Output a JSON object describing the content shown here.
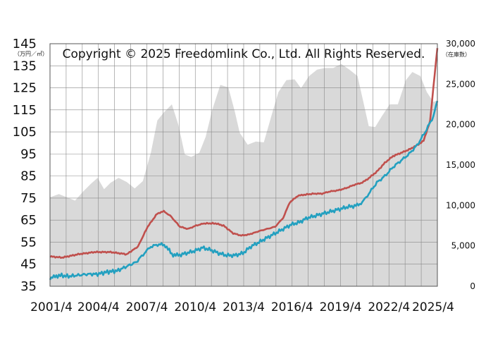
{
  "chart_data": {
    "type": "line",
    "title": "",
    "annotation": "Copyright © 2025 Freedomlink Co., Ltd. All Rights Reserved.",
    "left_unit": "（万円／㎡）",
    "right_unit": "（在庫数）",
    "grid": true,
    "y_left": {
      "ylim": [
        35,
        145
      ],
      "ticks": [
        "145",
        "135",
        "125",
        "115",
        "105",
        "95",
        "85",
        "75",
        "65",
        "55",
        "45",
        "35"
      ]
    },
    "y_right": {
      "ylim": [
        0,
        30000
      ],
      "ticks": [
        "30,000",
        "25,000",
        "20,000",
        "15,000",
        "10,000",
        "5,000",
        "0"
      ]
    },
    "x_ticks": [
      "2001/4",
      "2004/4",
      "2007/4",
      "2010/4",
      "2013/4",
      "2016/4",
      "2019/4",
      "2022/4",
      "2025/4"
    ],
    "xlim": [
      2001.25,
      2025.25
    ],
    "colors": {
      "area": "#d9d9d9",
      "red": "#c0504d",
      "teal": "#23a0c0",
      "grid": "#888888"
    },
    "series": [
      {
        "type": "area",
        "axis": "right",
        "points": [
          [
            2001.25,
            11000
          ],
          [
            2001.8,
            11400
          ],
          [
            2002.3,
            11000
          ],
          [
            2002.8,
            10600
          ],
          [
            2003.3,
            11700
          ],
          [
            2003.8,
            12700
          ],
          [
            2004.2,
            13400
          ],
          [
            2004.6,
            12000
          ],
          [
            2005.0,
            12800
          ],
          [
            2005.5,
            13400
          ],
          [
            2006.0,
            12900
          ],
          [
            2006.5,
            12100
          ],
          [
            2007.0,
            13000
          ],
          [
            2007.5,
            16500
          ],
          [
            2007.9,
            20500
          ],
          [
            2008.3,
            21500
          ],
          [
            2008.8,
            22500
          ],
          [
            2009.2,
            20000
          ],
          [
            2009.6,
            16300
          ],
          [
            2010.0,
            16000
          ],
          [
            2010.5,
            16500
          ],
          [
            2010.9,
            18500
          ],
          [
            2011.3,
            21800
          ],
          [
            2011.8,
            24900
          ],
          [
            2012.3,
            24600
          ],
          [
            2012.7,
            21600
          ],
          [
            2013.0,
            19000
          ],
          [
            2013.5,
            17500
          ],
          [
            2014.0,
            17900
          ],
          [
            2014.5,
            17800
          ],
          [
            2015.0,
            21300
          ],
          [
            2015.4,
            24000
          ],
          [
            2015.9,
            25500
          ],
          [
            2016.4,
            25600
          ],
          [
            2016.8,
            24500
          ],
          [
            2017.3,
            26000
          ],
          [
            2017.8,
            26800
          ],
          [
            2018.3,
            27000
          ],
          [
            2018.8,
            27000
          ],
          [
            2019.3,
            27500
          ],
          [
            2019.8,
            26800
          ],
          [
            2020.3,
            26000
          ],
          [
            2020.7,
            22500
          ],
          [
            2021.0,
            19800
          ],
          [
            2021.4,
            19700
          ],
          [
            2021.8,
            21000
          ],
          [
            2022.3,
            22500
          ],
          [
            2022.8,
            22500
          ],
          [
            2023.3,
            25500
          ],
          [
            2023.7,
            26500
          ],
          [
            2024.2,
            26000
          ],
          [
            2024.6,
            24000
          ],
          [
            2025.0,
            22800
          ],
          [
            2025.25,
            23000
          ]
        ]
      },
      {
        "name": "",
        "axis": "left",
        "color": "#c0504d",
        "points": [
          [
            2001.25,
            48.5
          ],
          [
            2002,
            48
          ],
          [
            2003,
            49.5
          ],
          [
            2004,
            50.5
          ],
          [
            2005,
            50.5
          ],
          [
            2006,
            49.5
          ],
          [
            2006.7,
            53
          ],
          [
            2007.3,
            62
          ],
          [
            2007.9,
            68
          ],
          [
            2008.3,
            69
          ],
          [
            2008.7,
            67
          ],
          [
            2009.3,
            62
          ],
          [
            2009.8,
            61
          ],
          [
            2010.3,
            62.5
          ],
          [
            2010.8,
            63.5
          ],
          [
            2011.5,
            63.5
          ],
          [
            2012.0,
            62.5
          ],
          [
            2012.6,
            59
          ],
          [
            2013.1,
            58
          ],
          [
            2013.6,
            58.5
          ],
          [
            2014.2,
            60
          ],
          [
            2014.7,
            61
          ],
          [
            2015.2,
            62
          ],
          [
            2015.7,
            66
          ],
          [
            2016.1,
            73
          ],
          [
            2016.6,
            76
          ],
          [
            2017.0,
            76.5
          ],
          [
            2017.6,
            77
          ],
          [
            2018.1,
            77
          ],
          [
            2018.6,
            78
          ],
          [
            2019.1,
            78.5
          ],
          [
            2019.6,
            79.5
          ],
          [
            2020.1,
            81
          ],
          [
            2020.6,
            82
          ],
          [
            2021.0,
            84
          ],
          [
            2021.5,
            87
          ],
          [
            2022.0,
            91
          ],
          [
            2022.5,
            94
          ],
          [
            2023.0,
            95.5
          ],
          [
            2023.5,
            97
          ],
          [
            2024.0,
            99
          ],
          [
            2024.4,
            101
          ],
          [
            2024.8,
            110
          ],
          [
            2025.0,
            125
          ],
          [
            2025.25,
            143
          ]
        ]
      },
      {
        "name": "",
        "axis": "left",
        "color": "#23a0c0",
        "points": [
          [
            2001.25,
            38.5
          ],
          [
            2001.8,
            40
          ],
          [
            2002.4,
            39.5
          ],
          [
            2003.0,
            40
          ],
          [
            2003.6,
            40.5
          ],
          [
            2004.2,
            40.5
          ],
          [
            2004.8,
            41.5
          ],
          [
            2005.4,
            42
          ],
          [
            2006.0,
            44
          ],
          [
            2006.6,
            46
          ],
          [
            2007.1,
            50
          ],
          [
            2007.5,
            53
          ],
          [
            2008.0,
            54
          ],
          [
            2008.4,
            53.5
          ],
          [
            2008.8,
            49.5
          ],
          [
            2009.2,
            49
          ],
          [
            2009.7,
            50
          ],
          [
            2010.2,
            51
          ],
          [
            2010.7,
            52.5
          ],
          [
            2011.2,
            51.5
          ],
          [
            2011.7,
            50
          ],
          [
            2012.2,
            49
          ],
          [
            2012.7,
            49
          ],
          [
            2013.2,
            50
          ],
          [
            2013.7,
            53
          ],
          [
            2014.2,
            55
          ],
          [
            2014.7,
            57
          ],
          [
            2015.2,
            59
          ],
          [
            2015.7,
            61
          ],
          [
            2016.2,
            63
          ],
          [
            2016.7,
            64
          ],
          [
            2017.2,
            66
          ],
          [
            2017.7,
            67
          ],
          [
            2018.2,
            68
          ],
          [
            2018.7,
            69
          ],
          [
            2019.2,
            70
          ],
          [
            2019.7,
            71
          ],
          [
            2020.2,
            71.5
          ],
          [
            2020.6,
            73
          ],
          [
            2021.0,
            77
          ],
          [
            2021.5,
            82
          ],
          [
            2022.0,
            85
          ],
          [
            2022.5,
            89
          ],
          [
            2023.0,
            92
          ],
          [
            2023.5,
            95
          ],
          [
            2024.0,
            99
          ],
          [
            2024.5,
            105
          ],
          [
            2025.0,
            112
          ],
          [
            2025.25,
            119
          ]
        ]
      }
    ]
  }
}
